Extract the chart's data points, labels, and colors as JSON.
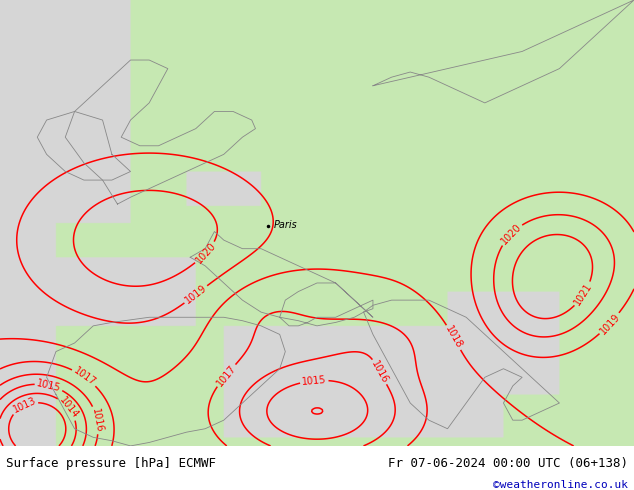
{
  "title_left": "Surface pressure [hPa] ECMWF",
  "title_right": "Fr 07-06-2024 00:00 UTC (06+138)",
  "credit": "©weatheronline.co.uk",
  "sea_color": [
    0.84,
    0.84,
    0.84
  ],
  "land_color": [
    0.78,
    0.91,
    0.7
  ],
  "white_color": [
    1.0,
    1.0,
    1.0
  ],
  "contour_color": "#ff0000",
  "coast_color": "#888888",
  "font_size_labels": 7,
  "font_size_title": 9,
  "font_size_credit": 8
}
